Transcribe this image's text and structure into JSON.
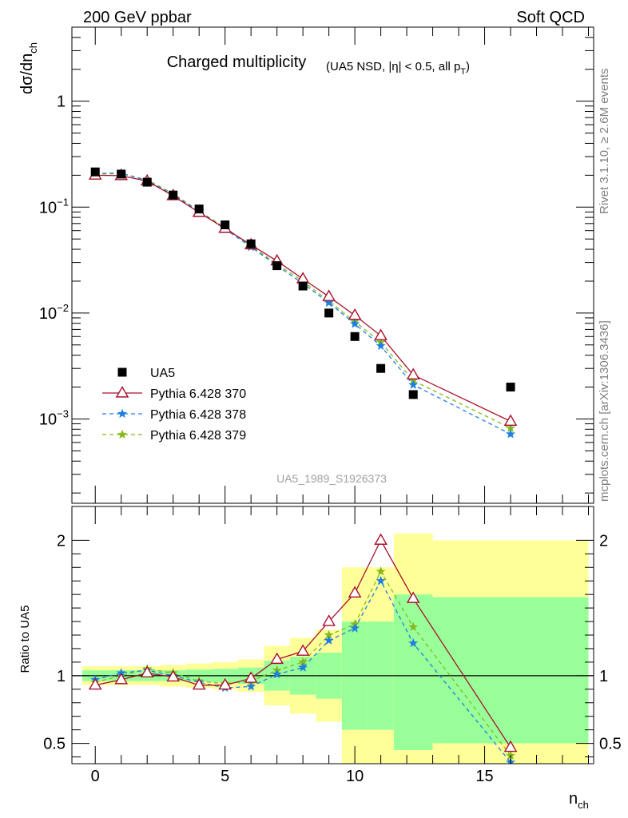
{
  "header": {
    "left": "200 GeV ppbar",
    "right": "Soft QCD",
    "side_top": "Rivet 3.1.10, ≥ 2.6M events",
    "side_bottom": "mcplots.cern.ch [arXiv:1306.3436]",
    "analysis_id": "UA5_1989_S1926373"
  },
  "colors": {
    "data": "#000000",
    "p370": "#a8102c",
    "p378": "#1e7fe0",
    "p379": "#86b81e",
    "band_inner": "#99ff99",
    "band_outer": "#ffff99"
  },
  "chart_data": [
    {
      "type": "scatter",
      "title": "Charged multiplicity",
      "subtitle": "(UA5 NSD, |η| < 0.5, all p",
      "subtitle_sub": "T",
      "subtitle_end": ")",
      "ylabel": "dσ/dn",
      "ylabel_sub": "ch",
      "yscale": "log",
      "xlim": [
        -0.9,
        19.2
      ],
      "ylim": [
        0.00016,
        5.0
      ],
      "y_ticks": [
        {
          "v": 1,
          "base": "1",
          "exp": ""
        },
        {
          "v": 0.1,
          "base": "10",
          "exp": "−1"
        },
        {
          "v": 0.01,
          "base": "10",
          "exp": "−2"
        },
        {
          "v": 0.001,
          "base": "10",
          "exp": "−3"
        }
      ],
      "legend": {
        "position": "lower-left",
        "entries": [
          "UA5",
          "Pythia 6.428 370",
          "Pythia 6.428 378",
          "Pythia 6.428 379"
        ]
      },
      "series": [
        {
          "name": "UA5",
          "marker": "square",
          "x": [
            0,
            1,
            2,
            3,
            4,
            5,
            6,
            7,
            8,
            9,
            10,
            11,
            12.25,
            16
          ],
          "y": [
            0.215,
            0.205,
            0.172,
            0.13,
            0.096,
            0.068,
            0.045,
            0.028,
            0.018,
            0.01,
            0.006,
            0.003,
            0.0017,
            0.002
          ]
        },
        {
          "name": "Pythia 6.428 370",
          "marker": "triangle",
          "x": [
            0,
            1,
            2,
            3,
            4,
            5,
            6,
            7,
            8,
            9,
            10,
            11,
            12.25,
            16
          ],
          "y": [
            0.2,
            0.198,
            0.176,
            0.128,
            0.089,
            0.063,
            0.044,
            0.031,
            0.021,
            0.0143,
            0.0095,
            0.0061,
            0.0026,
            0.00095
          ]
        },
        {
          "name": "Pythia 6.428 378",
          "marker": "star",
          "x": [
            0,
            1,
            2,
            3,
            4,
            5,
            6,
            7,
            8,
            9,
            10,
            11,
            12.25,
            16
          ],
          "y": [
            0.208,
            0.21,
            0.178,
            0.131,
            0.091,
            0.062,
            0.042,
            0.028,
            0.019,
            0.0125,
            0.0079,
            0.0049,
            0.0021,
            0.00072
          ]
        },
        {
          "name": "Pythia 6.428 379",
          "marker": "star",
          "x": [
            0,
            1,
            2,
            3,
            4,
            5,
            6,
            7,
            8,
            9,
            10,
            11,
            12.25,
            16
          ],
          "y": [
            0.205,
            0.207,
            0.181,
            0.134,
            0.092,
            0.064,
            0.043,
            0.029,
            0.02,
            0.013,
            0.0083,
            0.0053,
            0.0023,
            0.00082
          ]
        }
      ]
    },
    {
      "type": "line",
      "ylabel": "Ratio to UA5",
      "xlabel": "n",
      "xlabel_sub": "ch",
      "xlim": [
        -0.9,
        19.2
      ],
      "ylim": [
        0.35,
        2.25
      ],
      "x_ticks": [
        0,
        5,
        10,
        15
      ],
      "y_ticks": [
        0.5,
        1,
        2
      ],
      "bands": [
        {
          "x0": -0.5,
          "x1": 0.5,
          "outer": [
            0.93,
            1.07
          ],
          "inner": [
            0.96,
            1.04
          ]
        },
        {
          "x0": 0.5,
          "x1": 1.5,
          "outer": [
            0.93,
            1.07
          ],
          "inner": [
            0.96,
            1.04
          ]
        },
        {
          "x0": 1.5,
          "x1": 2.5,
          "outer": [
            0.93,
            1.07
          ],
          "inner": [
            0.96,
            1.04
          ]
        },
        {
          "x0": 2.5,
          "x1": 3.5,
          "outer": [
            0.92,
            1.08
          ],
          "inner": [
            0.96,
            1.04
          ]
        },
        {
          "x0": 3.5,
          "x1": 4.5,
          "outer": [
            0.91,
            1.09
          ],
          "inner": [
            0.955,
            1.045
          ]
        },
        {
          "x0": 4.5,
          "x1": 5.5,
          "outer": [
            0.9,
            1.1
          ],
          "inner": [
            0.95,
            1.05
          ]
        },
        {
          "x0": 5.5,
          "x1": 6.5,
          "outer": [
            0.88,
            1.12
          ],
          "inner": [
            0.94,
            1.06
          ]
        },
        {
          "x0": 6.5,
          "x1": 7.5,
          "outer": [
            0.78,
            1.22
          ],
          "inner": [
            0.89,
            1.11
          ]
        },
        {
          "x0": 7.5,
          "x1": 8.5,
          "outer": [
            0.72,
            1.28
          ],
          "inner": [
            0.86,
            1.14
          ]
        },
        {
          "x0": 8.5,
          "x1": 9.5,
          "outer": [
            0.66,
            1.34
          ],
          "inner": [
            0.83,
            1.17
          ]
        },
        {
          "x0": 9.5,
          "x1": 10.5,
          "outer": [
            0.2,
            1.8
          ],
          "inner": [
            0.6,
            1.4
          ]
        },
        {
          "x0": 10.5,
          "x1": 11.5,
          "outer": [
            0.2,
            1.8
          ],
          "inner": [
            0.6,
            1.4
          ]
        },
        {
          "x0": 11.5,
          "x1": 13.0,
          "outer": [
            0.2,
            2.05
          ],
          "inner": [
            0.45,
            1.6
          ]
        },
        {
          "x0": 13.0,
          "x1": 19.0,
          "outer": [
            0.2,
            2.0
          ],
          "inner": [
            0.5,
            1.58
          ]
        }
      ],
      "series": [
        {
          "name": "Pythia 6.428 370",
          "x": [
            0,
            1,
            2,
            3,
            4,
            5,
            6,
            7,
            8,
            9,
            10,
            11,
            12.25,
            16
          ],
          "y": [
            0.93,
            0.97,
            1.02,
            0.99,
            0.93,
            0.93,
            0.98,
            1.12,
            1.18,
            1.4,
            1.61,
            2.0,
            1.57,
            0.47
          ]
        },
        {
          "name": "Pythia 6.428 378",
          "x": [
            0,
            1,
            2,
            3,
            4,
            5,
            6,
            7,
            8,
            9,
            10,
            11,
            12.25,
            16
          ],
          "y": [
            0.97,
            1.02,
            1.04,
            1.0,
            0.95,
            0.91,
            0.92,
            1.01,
            1.06,
            1.26,
            1.35,
            1.7,
            1.24,
            0.36
          ]
        },
        {
          "name": "Pythia 6.428 379",
          "x": [
            0,
            1,
            2,
            3,
            4,
            5,
            6,
            7,
            8,
            9,
            10,
            11,
            12.25,
            16
          ],
          "y": [
            0.95,
            1.0,
            1.05,
            1.02,
            0.96,
            0.94,
            0.96,
            1.04,
            1.1,
            1.3,
            1.38,
            1.77,
            1.36,
            0.41
          ]
        }
      ]
    }
  ]
}
